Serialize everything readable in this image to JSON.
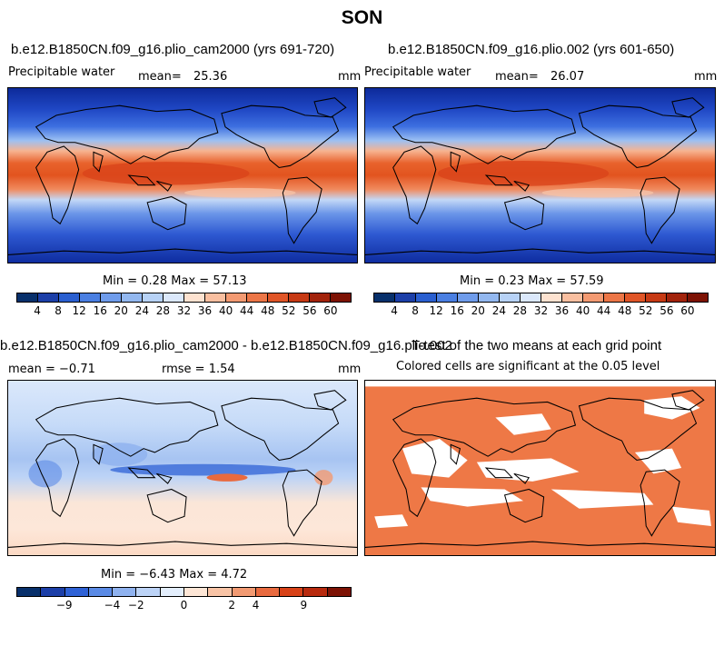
{
  "season": "SON",
  "panels": [
    {
      "title": "b.e12.B1850CN.f09_g16.plio_cam2000 (yrs 691-720)",
      "variable": "Precipitable water",
      "mean_label": "mean=",
      "mean_value": "25.36",
      "units": "mm",
      "minmax": "Min =    0.28  Max =   57.13"
    },
    {
      "title": "b.e12.B1850CN.f09_g16.plio.002 (yrs 601-650)",
      "variable": "Precipitable water",
      "mean_label": "mean=",
      "mean_value": "26.07",
      "units": "mm",
      "minmax": "Min =    0.23  Max =   57.59"
    },
    {
      "title": "b.e12.B1850CN.f09_g16.plio_cam2000 - b.e12.B1850CN.f09_g16.plio.002",
      "mean_text": "mean =   −0.71",
      "rmse_text": "rmse =    1.54",
      "units": "mm",
      "minmax": "Min =   −6.43  Max =    4.72"
    },
    {
      "title": "T-test of the two means at each grid point",
      "subtitle": "Colored cells are significant at the 0.05 level"
    }
  ],
  "legend_abs": {
    "colors": [
      "#08306b",
      "#1c3fa8",
      "#2a5fd0",
      "#4a7fe2",
      "#6f9ceb",
      "#93b8f0",
      "#b7d2f6",
      "#dbe8fb",
      "#fde2d0",
      "#f9bfa0",
      "#f39a72",
      "#ec7647",
      "#e05527",
      "#c73a14",
      "#a2230b",
      "#7d1204"
    ],
    "ticks": [
      "4",
      "8",
      "12",
      "16",
      "20",
      "24",
      "28",
      "32",
      "36",
      "40",
      "44",
      "48",
      "52",
      "56",
      "60"
    ]
  },
  "legend_diff": {
    "colors": [
      "#08306b",
      "#1c3fa8",
      "#2f62d6",
      "#5b8be6",
      "#8fb2ef",
      "#bcd3f6",
      "#e3eefc",
      "#fde6d6",
      "#f9c4a6",
      "#f29a72",
      "#e96a3f",
      "#d84218",
      "#b82a0e",
      "#7d1204"
    ],
    "ticks": [
      {
        "label": "−9",
        "pos": 2
      },
      {
        "label": "−4",
        "pos": 4
      },
      {
        "label": "−2",
        "pos": 5
      },
      {
        "label": "0",
        "pos": 7
      },
      {
        "label": "2",
        "pos": 9
      },
      {
        "label": "4",
        "pos": 10
      },
      {
        "label": "9",
        "pos": 12
      }
    ]
  },
  "colors": {
    "ocean_deep_blue": "#1a3fb8",
    "tropical_red": "#e0551f",
    "significant_cells": "#ee7846",
    "land_outline": "#000000"
  }
}
